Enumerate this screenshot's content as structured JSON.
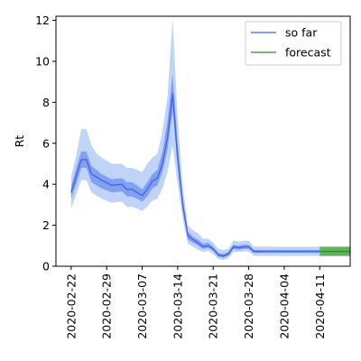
{
  "chart_data": {
    "type": "line",
    "title": "",
    "xlabel": "",
    "ylabel": "Rt",
    "ylim": [
      0,
      12.2
    ],
    "xlim": [
      "2020-02-19",
      "2020-04-17"
    ],
    "grid": false,
    "legend": {
      "placement": "top-right",
      "entries": [
        "so far",
        "forecast"
      ]
    },
    "x_ticks": [
      "2020-02-22",
      "2020-02-29",
      "2020-03-07",
      "2020-03-14",
      "2020-03-21",
      "2020-03-28",
      "2020-04-04",
      "2020-04-11"
    ],
    "y_ticks": [
      "0",
      "2",
      "4",
      "6",
      "8",
      "10",
      "12"
    ],
    "colors": {
      "so_far_line": "#4060f0",
      "so_far_inner_band": "#6d8ff0",
      "so_far_outer_band": "#b4cdf5",
      "forecast_line": "#2e8b2e",
      "forecast_band": "#4fa84f"
    },
    "series": [
      {
        "name": "so far",
        "points": [
          [
            "2020-02-22",
            3.6,
            3.3,
            3.9,
            2.8,
            4.4
          ],
          [
            "2020-02-23",
            4.4,
            4.0,
            4.8,
            3.5,
            5.4
          ],
          [
            "2020-02-24",
            5.2,
            4.8,
            5.6,
            4.2,
            6.7
          ],
          [
            "2020-02-25",
            5.2,
            4.8,
            5.6,
            4.2,
            6.7
          ],
          [
            "2020-02-26",
            4.5,
            4.1,
            4.9,
            3.6,
            5.9
          ],
          [
            "2020-02-27",
            4.35,
            3.95,
            4.7,
            3.45,
            5.5
          ],
          [
            "2020-02-28",
            4.2,
            3.8,
            4.5,
            3.3,
            5.3
          ],
          [
            "2020-03-01",
            3.95,
            3.6,
            4.25,
            3.1,
            5.0
          ],
          [
            "2020-03-03",
            4.0,
            3.65,
            4.3,
            3.15,
            5.0
          ],
          [
            "2020-03-04",
            3.75,
            3.4,
            4.1,
            2.9,
            4.8
          ],
          [
            "2020-03-05",
            3.75,
            3.4,
            4.1,
            2.9,
            4.8
          ],
          [
            "2020-03-06",
            3.6,
            3.3,
            3.95,
            2.8,
            4.7
          ],
          [
            "2020-03-07",
            3.45,
            3.15,
            3.75,
            2.7,
            4.6
          ],
          [
            "2020-03-08",
            3.75,
            3.4,
            4.1,
            2.9,
            5.0
          ],
          [
            "2020-03-09",
            4.15,
            3.8,
            4.5,
            3.2,
            5.3
          ],
          [
            "2020-03-10",
            4.3,
            3.95,
            4.7,
            3.3,
            5.5
          ],
          [
            "2020-03-11",
            5.0,
            4.6,
            5.6,
            3.8,
            6.6
          ],
          [
            "2020-03-12",
            6.3,
            5.7,
            7.1,
            4.6,
            8.3
          ],
          [
            "2020-03-13",
            8.4,
            7.6,
            9.4,
            5.9,
            12.1
          ],
          [
            "2020-03-14",
            5.3,
            4.8,
            5.9,
            4.0,
            7.2
          ],
          [
            "2020-03-15",
            3.0,
            2.7,
            3.3,
            2.3,
            3.9
          ],
          [
            "2020-03-16",
            1.5,
            1.3,
            1.7,
            1.1,
            2.0
          ],
          [
            "2020-03-17",
            1.3,
            1.15,
            1.45,
            0.95,
            1.75
          ],
          [
            "2020-03-18",
            1.15,
            1.0,
            1.3,
            0.8,
            1.6
          ],
          [
            "2020-03-19",
            0.95,
            0.85,
            1.1,
            0.7,
            1.35
          ],
          [
            "2020-03-20",
            1.0,
            0.9,
            1.15,
            0.75,
            1.35
          ],
          [
            "2020-03-21",
            0.85,
            0.75,
            0.95,
            0.6,
            1.15
          ],
          [
            "2020-03-22",
            0.55,
            0.47,
            0.65,
            0.35,
            0.85
          ],
          [
            "2020-03-23",
            0.5,
            0.42,
            0.6,
            0.3,
            0.8
          ],
          [
            "2020-03-24",
            0.6,
            0.52,
            0.7,
            0.4,
            0.85
          ],
          [
            "2020-03-25",
            0.95,
            0.85,
            1.05,
            0.7,
            1.25
          ],
          [
            "2020-03-26",
            0.9,
            0.8,
            1.0,
            0.7,
            1.2
          ],
          [
            "2020-03-27",
            0.95,
            0.85,
            1.05,
            0.72,
            1.25
          ],
          [
            "2020-03-28",
            0.95,
            0.85,
            1.05,
            0.72,
            1.25
          ],
          [
            "2020-03-29",
            0.72,
            0.65,
            0.8,
            0.5,
            0.95
          ],
          [
            "2020-04-11",
            0.72,
            0.65,
            0.8,
            0.5,
            0.95
          ]
        ]
      },
      {
        "name": "forecast",
        "points": [
          [
            "2020-04-11",
            0.72,
            0.62,
            0.82,
            0.5,
            0.95
          ],
          [
            "2020-04-17",
            0.72,
            0.62,
            0.82,
            0.5,
            0.95
          ]
        ]
      }
    ]
  }
}
